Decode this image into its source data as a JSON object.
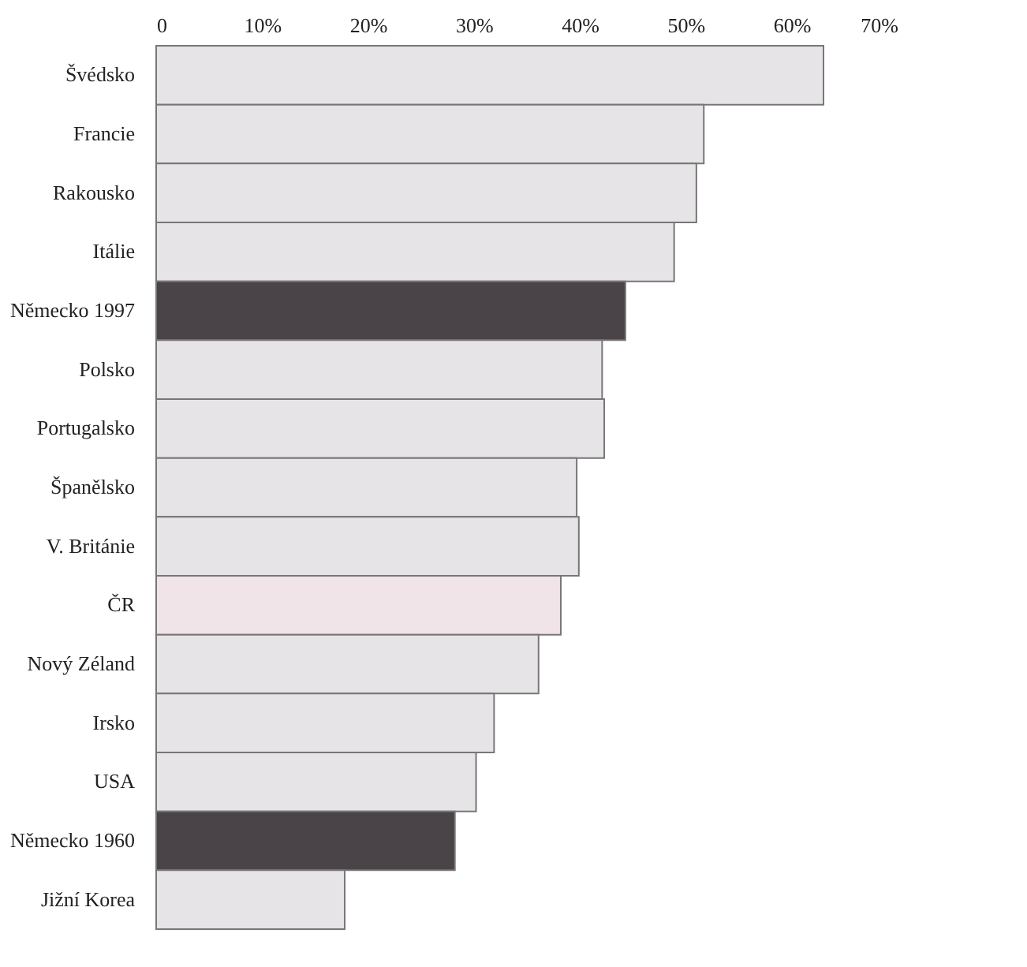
{
  "chart_data": {
    "type": "bar",
    "orientation": "horizontal",
    "categories": [
      "Švédsko",
      "Francie",
      "Rakousko",
      "Itálie",
      "Německo 1997",
      "Polsko",
      "Portugalsko",
      "Španělsko",
      "V. Británie",
      "ČR",
      "Nový Zéland",
      "Irsko",
      "USA",
      "Německo 1960",
      "Jižní Korea"
    ],
    "values": [
      63,
      51.7,
      51,
      48.9,
      44.3,
      42.1,
      42.3,
      39.7,
      39.9,
      38.2,
      36.1,
      31.9,
      30.2,
      28.2,
      17.8
    ],
    "colors": [
      "#e6e4e6",
      "#e6e4e6",
      "#e6e4e6",
      "#e6e4e6",
      "#4a4347",
      "#e6e4e6",
      "#e6e4e6",
      "#e6e4e6",
      "#e6e4e6",
      "#f0e4e8",
      "#e6e4e6",
      "#e6e4e6",
      "#e6e4e6",
      "#4a4347",
      "#e6e4e6"
    ],
    "xlim": [
      0,
      70
    ],
    "xticks": [
      0,
      {
        "value": 10,
        "label": "10%"
      },
      {
        "value": 20,
        "label": "20%"
      },
      {
        "value": 30,
        "label": "30%"
      },
      {
        "value": 40,
        "label": "40%"
      },
      {
        "value": 50,
        "label": "50%"
      },
      {
        "value": 60,
        "label": "60%"
      },
      {
        "value": 70,
        "label": "70%"
      }
    ],
    "grid": false
  }
}
